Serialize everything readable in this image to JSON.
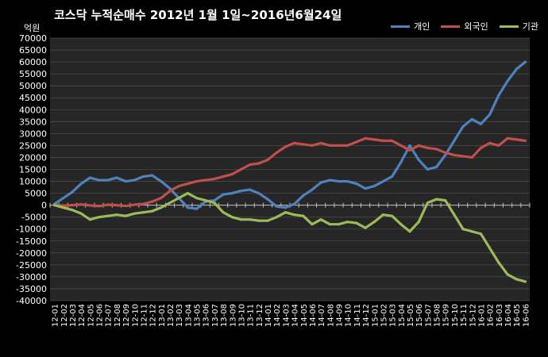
{
  "chart_data": {
    "type": "line",
    "title": "코스닥 누적순매수 2012년 1월 1일~2016년6월24일",
    "ylabel": "억원",
    "ylim": [
      -40000,
      70000
    ],
    "ytick_step": 5000,
    "grid": true,
    "legend_position": "top-right",
    "background": "#000000",
    "plot_background": "#262626",
    "categories": [
      "12-01",
      "12-02",
      "12-03",
      "12-04",
      "12-05",
      "12-06",
      "12-07",
      "12-08",
      "12-09",
      "12-10",
      "12-11",
      "12-12",
      "13-01",
      "13-02",
      "13-03",
      "13-04",
      "13-05",
      "13-06",
      "13-07",
      "13-08",
      "13-09",
      "13-10",
      "13-11",
      "13-12",
      "14-01",
      "14-02",
      "14-03",
      "14-04",
      "14-05",
      "14-06",
      "14-07",
      "14-08",
      "14-09",
      "14-10",
      "14-11",
      "14-12",
      "15-01",
      "15-02",
      "15-03",
      "15-04",
      "15-05",
      "15-06",
      "15-07",
      "15-08",
      "15-09",
      "15-10",
      "15-11",
      "15-12",
      "16-01",
      "16-02",
      "16-03",
      "16-04",
      "16-05",
      "16-06"
    ],
    "series": [
      {
        "name": "개인",
        "color": "#4f81bd",
        "values": [
          500,
          3000,
          5500,
          9000,
          11500,
          10500,
          10500,
          11500,
          10000,
          10500,
          12000,
          12500,
          10000,
          7000,
          3000,
          -1000,
          -1500,
          1500,
          2000,
          4500,
          5000,
          6000,
          6500,
          5000,
          2500,
          -500,
          -1000,
          500,
          4000,
          6500,
          9500,
          10500,
          10000,
          10000,
          9000,
          7000,
          8000,
          10000,
          12000,
          18000,
          25000,
          19000,
          15000,
          16000,
          21000,
          27000,
          33000,
          36000,
          34000,
          38000,
          46000,
          52000,
          57000,
          60000
        ]
      },
      {
        "name": "외국인",
        "color": "#c0504d",
        "values": [
          0,
          -200,
          0,
          300,
          -100,
          -400,
          200,
          0,
          -300,
          200,
          500,
          1500,
          3000,
          6000,
          8000,
          9000,
          10000,
          10500,
          11000,
          12000,
          13000,
          15000,
          17000,
          17500,
          19000,
          22000,
          24500,
          26000,
          25500,
          25000,
          26000,
          25000,
          25000,
          25000,
          26500,
          28000,
          27500,
          27000,
          27000,
          25000,
          23000,
          25000,
          24000,
          23500,
          22000,
          21000,
          20500,
          20000,
          24000,
          26000,
          25000,
          28000,
          27500,
          27000
        ]
      },
      {
        "name": "기관",
        "color": "#9bbb59",
        "values": [
          0,
          -1000,
          -2000,
          -3500,
          -6000,
          -5000,
          -4500,
          -4000,
          -4500,
          -3500,
          -3000,
          -2500,
          -1000,
          1000,
          3000,
          5000,
          3000,
          2000,
          1000,
          -3000,
          -5000,
          -6000,
          -6000,
          -6500,
          -6500,
          -5000,
          -3000,
          -4000,
          -4500,
          -8000,
          -6000,
          -8000,
          -8000,
          -7000,
          -7500,
          -9500,
          -7000,
          -4000,
          -4500,
          -8000,
          -11000,
          -7000,
          1000,
          2500,
          2000,
          -4000,
          -10000,
          -11000,
          -12000,
          -18000,
          -24000,
          -29000,
          -31000,
          -32000
        ]
      }
    ]
  }
}
